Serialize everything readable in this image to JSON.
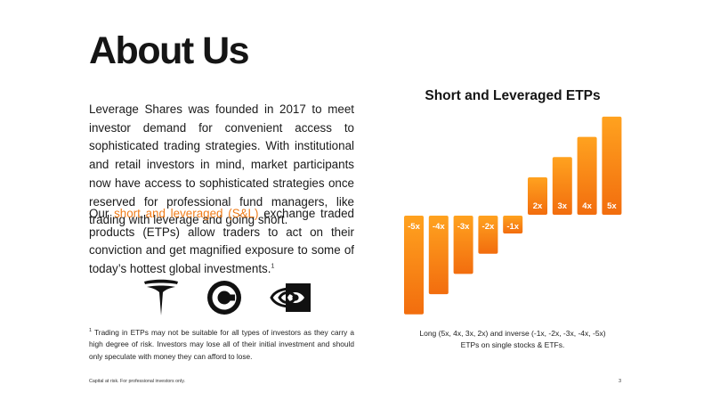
{
  "page": {
    "title": "About Us",
    "para1": "Leverage Shares was founded in 2017 to meet investor demand for convenient access to sophisticated trading strategies. With institutional and retail investors in mind, market participants now have access to sophisticated strategies once reserved for professional fund managers, like trading with leverage and going short.",
    "para2_before": "Our ",
    "para2_accent": "short and leveraged (S&L)",
    "para2_after": " exchange traded products (ETPs) allow traders to act on their conviction and get magnified exposure to some of today’s hottest global investments.",
    "para2_sup": "1",
    "footnote_sup": "1",
    "footnote": " Trading in ETPs may not be suitable for all types of investors as they carry a high degree of risk. Investors may lose all of their initial investment and should only speculate with money they can afford to lose.",
    "disclaimer": "Capital at risk. For professional investors only.",
    "page_number": "3",
    "accent_color": "#f07d1a"
  },
  "logos": [
    {
      "name": "tesla-logo-icon"
    },
    {
      "name": "coinbase-logo-icon"
    },
    {
      "name": "nvidia-logo-icon"
    }
  ],
  "chart_data": {
    "type": "bar",
    "title": "Short and Leveraged ETPs",
    "caption_line1": "Long (5x, 4x, 3x, 2x) and inverse (-1x, -2x, -3x, -4x, -5x)",
    "caption_line2": "ETPs on single stocks & ETFs.",
    "categories": [
      "-5x",
      "-4x",
      "-3x",
      "-2x",
      "-1x",
      "2x",
      "3x",
      "4x",
      "5x"
    ],
    "values": [
      -5,
      -4,
      -3,
      -2,
      -1,
      2,
      3,
      4,
      5
    ],
    "bar_colors": [
      "#ffa21f",
      "#f26d0e"
    ]
  }
}
